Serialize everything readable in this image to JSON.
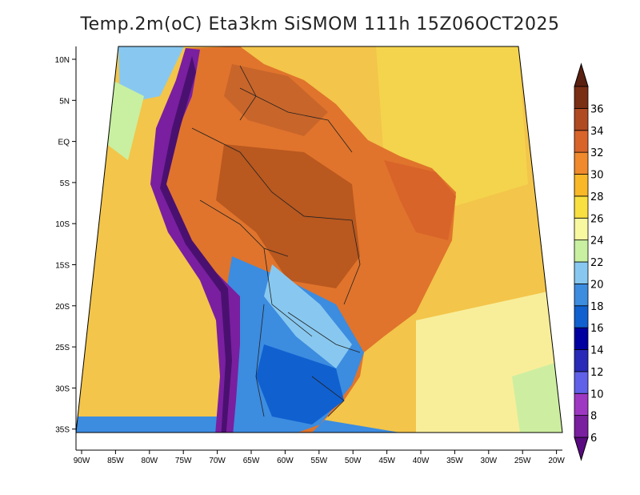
{
  "title": "Temp.2m(oC) Eta3km SiSMOM 111h 15Z06OCT2025",
  "map": {
    "lon_range": [
      -92,
      -20
    ],
    "lat_range": [
      -38,
      12
    ],
    "lon_ticks": [
      "90W",
      "85W",
      "80W",
      "75W",
      "70W",
      "65W",
      "60W",
      "55W",
      "50W",
      "45W",
      "40W",
      "35W",
      "30W",
      "25W",
      "20W"
    ],
    "lat_ticks": [
      "10N",
      "5N",
      "EQ",
      "5S",
      "10S",
      "15S",
      "20S",
      "25S",
      "30S",
      "35S"
    ],
    "ocean_color": "#f3c54a"
  },
  "colorbar": {
    "labels": [
      "6",
      "8",
      "10",
      "12",
      "14",
      "16",
      "18",
      "20",
      "22",
      "24",
      "26",
      "28",
      "30",
      "32",
      "34",
      "36"
    ],
    "colors": [
      "#7a1fa0",
      "#9e38c2",
      "#6060e8",
      "#2a2ab8",
      "#0000a0",
      "#1060d0",
      "#3c8ce0",
      "#88c8f0",
      "#c8f0a0",
      "#f8f8a0",
      "#f8e040",
      "#f8b828",
      "#f08a2c",
      "#d8642a",
      "#b04a22",
      "#7a2e14"
    ],
    "min_color": "#5a0a80",
    "max_color": "#5a2010"
  }
}
